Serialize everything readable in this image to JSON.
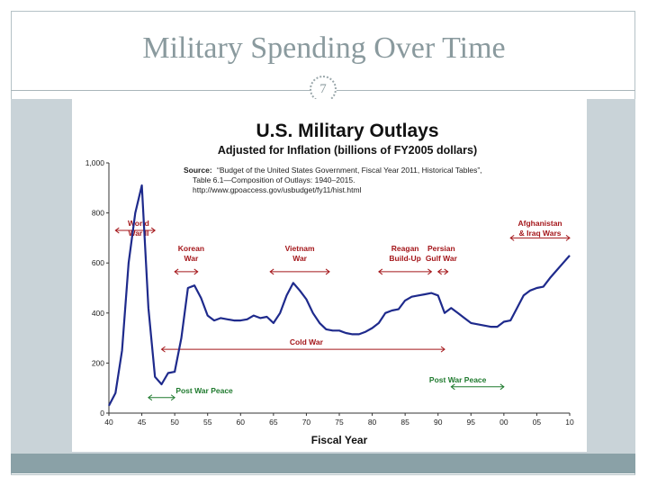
{
  "slide": {
    "title": "Military Spending Over Time",
    "page_number": "7"
  },
  "colors": {
    "line": "#1e2a8c",
    "annotation": "#a4161a",
    "green": "#1f7a2e",
    "panel": "#c9d3d8",
    "bar": "#8aa1a7"
  },
  "chart_data": {
    "type": "line",
    "title": "U.S. Military Outlays",
    "subtitle": "Adjusted for Inflation (billions of FY2005 dollars)",
    "xlabel": "Fiscal Year",
    "ylabel": "",
    "xlim": [
      1940,
      2010
    ],
    "ylim": [
      0,
      1000
    ],
    "yticks": [
      0,
      200,
      400,
      600,
      800,
      1000
    ],
    "ytick_labels": [
      "0",
      "200",
      "400",
      "600",
      "800",
      "1,000"
    ],
    "xticks": [
      1940,
      1945,
      1950,
      1955,
      1960,
      1965,
      1970,
      1975,
      1980,
      1985,
      1990,
      1995,
      2000,
      2005,
      2010
    ],
    "xtick_labels": [
      "40",
      "45",
      "50",
      "55",
      "60",
      "65",
      "70",
      "75",
      "80",
      "85",
      "90",
      "95",
      "00",
      "05",
      "10"
    ],
    "grid": false,
    "source": {
      "label": "Source:",
      "text": "“Budget of the United States Government, Fiscal Year 2011, Historical Tables”,",
      "line2": "Table 6.1—Composition of Outlays: 1940–2015.",
      "line3": "http://www.gpoaccess.gov/usbudget/fy11/hist.html"
    },
    "series": [
      {
        "values_x": [
          1940,
          1941,
          1942,
          1943,
          1944,
          1945,
          1946,
          1947,
          1948,
          1949,
          1950,
          1951,
          1952,
          1953,
          1954,
          1955,
          1956,
          1957,
          1958,
          1959,
          1960,
          1961,
          1962,
          1963,
          1964,
          1965,
          1966,
          1967,
          1968,
          1969,
          1970,
          1971,
          1972,
          1973,
          1974,
          1975,
          1976,
          1977,
          1978,
          1979,
          1980,
          1981,
          1982,
          1983,
          1984,
          1985,
          1986,
          1987,
          1988,
          1989,
          1990,
          1991,
          1992,
          1993,
          1994,
          1995,
          1996,
          1997,
          1998,
          1999,
          2000,
          2001,
          2002,
          2003,
          2004,
          2005,
          2006,
          2007,
          2008,
          2009,
          2010
        ],
        "values_y": [
          30,
          80,
          250,
          600,
          800,
          910,
          420,
          145,
          115,
          160,
          165,
          300,
          500,
          510,
          460,
          390,
          370,
          380,
          375,
          370,
          370,
          375,
          390,
          380,
          385,
          360,
          400,
          470,
          520,
          490,
          455,
          400,
          360,
          335,
          330,
          330,
          320,
          315,
          315,
          325,
          340,
          360,
          400,
          410,
          415,
          450,
          465,
          470,
          475,
          480,
          470,
          400,
          420,
          400,
          380,
          360,
          355,
          350,
          345,
          345,
          365,
          370,
          420,
          470,
          490,
          500,
          505,
          540,
          570,
          600,
          630
        ]
      }
    ],
    "annotations": [
      {
        "text": "World",
        "text2": "War II",
        "x": 1944.5,
        "y": 748,
        "color": "annotation",
        "arrow": [
          1941,
          1947
        ],
        "arrow_y": 730
      },
      {
        "text": "Korean",
        "text2": "War",
        "x": 1952.5,
        "y": 648,
        "color": "annotation",
        "arrow": [
          1950,
          1953.5
        ],
        "arrow_y": 565
      },
      {
        "text": "Vietnam",
        "text2": "War",
        "x": 1969,
        "y": 648,
        "color": "annotation",
        "arrow": [
          1964.5,
          1973.5
        ],
        "arrow_y": 565
      },
      {
        "text": "Reagan",
        "text2": "Build-Up",
        "x": 1985,
        "y": 648,
        "color": "annotation",
        "arrow": [
          1981,
          1989
        ],
        "arrow_y": 565
      },
      {
        "text": "Persian",
        "text2": "Gulf War",
        "x": 1990.5,
        "y": 648,
        "color": "annotation",
        "arrow": [
          1990,
          1991.5
        ],
        "arrow_y": 565
      },
      {
        "text": "Afghanistan",
        "text2": "& Iraq Wars",
        "x": 2005.5,
        "y": 748,
        "color": "annotation",
        "arrow": [
          2001,
          2010
        ],
        "arrow_y": 700
      },
      {
        "text": "Cold War",
        "text2": "",
        "x": 1970,
        "y": 273,
        "color": "annotation",
        "arrow": [
          1948,
          1991
        ],
        "arrow_y": 255
      },
      {
        "text": "Post War Peace",
        "text2": "",
        "x": 1954.5,
        "y": 79,
        "color": "green",
        "arrow": [
          1946,
          1950
        ],
        "arrow_y": 62
      },
      {
        "text": "Post War Peace",
        "text2": "",
        "x": 1993,
        "y": 122,
        "color": "green",
        "arrow": [
          1992,
          2000
        ],
        "arrow_y": 105
      }
    ]
  }
}
